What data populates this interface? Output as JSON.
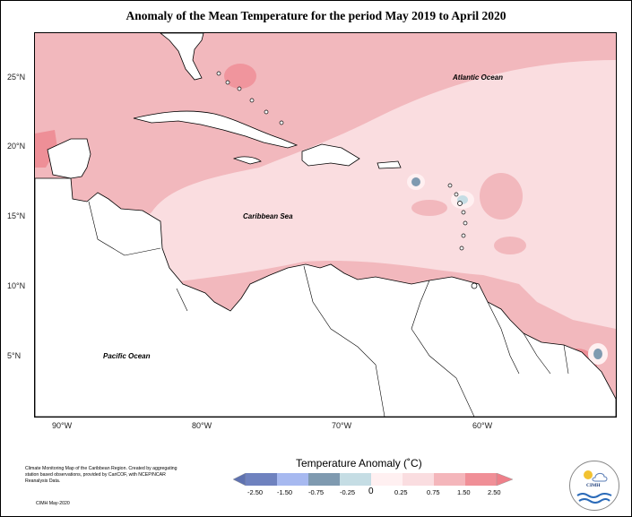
{
  "title": "Anomaly of the Mean Temperature for the period May 2019 to April 2020",
  "lat_labels": [
    "25°N",
    "20°N",
    "15°N",
    "10°N",
    "5°N"
  ],
  "lon_labels": [
    "90°W",
    "80°W",
    "70°W",
    "60°W"
  ],
  "ocean_labels": {
    "atlantic": "Atlantic Ocean",
    "caribbean": "Caribbean Sea",
    "pacific": "Pacific Ocean"
  },
  "colorbar": {
    "title": "Temperature Anomaly (˚C)",
    "ticks": [
      "-2.50",
      "-1.50",
      "-0.75",
      "-0.25",
      "0",
      "0.25",
      "0.75",
      "1.50",
      "2.50"
    ],
    "colors": [
      "#6f82bf",
      "#a7b9f0",
      "#7f9ab0",
      "#c5dde4",
      "#fff0f1",
      "#fadde0",
      "#f4b6bb",
      "#f08f97"
    ]
  },
  "credit": {
    "text": "Climate Monitoring Map of the Caribbean Region. Created by aggregating station based observations, provided by CariCOF, with NCEP/NCAR Reanalysis Data.",
    "date": "CIMH May-2020"
  },
  "logo": {
    "text": "CIMH"
  }
}
